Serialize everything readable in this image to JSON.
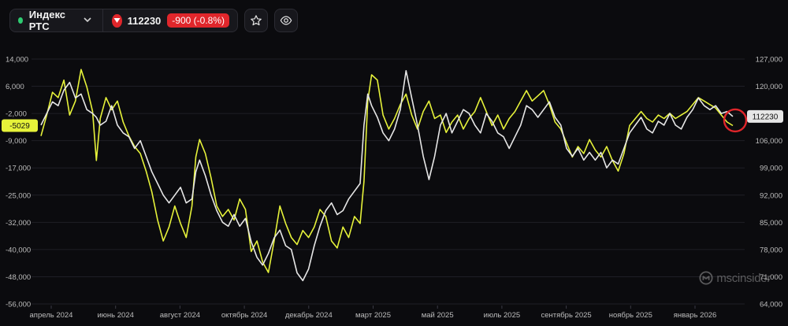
{
  "header": {
    "ticker_name": "Индекс РТС",
    "ticker_dot_color": "#2ecc71",
    "price": "112230",
    "change": "-900 (-0.8%)",
    "change_color": "#e0262b",
    "favorite_icon": "star-icon",
    "watch_icon": "eye-icon",
    "dropdown_icon": "chevron-down-icon",
    "trend_icon": "triangle-down-icon"
  },
  "brand": {
    "logo_icon": "mscinsider-logo-icon",
    "text": "mscinsider"
  },
  "chart_data": {
    "type": "line",
    "grid": true,
    "legend": "none",
    "x_ticks": [
      "апрель 2024",
      "июнь 2024",
      "август 2024",
      "октябрь 2024",
      "декабрь 2024",
      "март 2025",
      "май 2025",
      "июль 2025",
      "сентябрь 2025",
      "ноябрь 2025",
      "январь 2026"
    ],
    "y_left": {
      "ticks": [
        "14,000",
        "6,000",
        "-2,000",
        "-9,000",
        "-17,000",
        "-25,000",
        "-32,000",
        "-40,000",
        "-48,000",
        "-56,000"
      ],
      "range": [
        -56000,
        14000
      ]
    },
    "y_right": {
      "ticks": [
        "127,000",
        "120,000",
        "113,000",
        "106,000",
        "99,000",
        "92,000",
        "85,000",
        "78,000",
        "71,000",
        "64,000"
      ],
      "range": [
        64000,
        127000
      ]
    },
    "flags": {
      "left_value": "-5029",
      "left_color": "#e6f23a",
      "right_value": "112230",
      "right_color": "#e6e6e6"
    },
    "series": [
      {
        "color": "#e6f23a",
        "axis": "left",
        "points": [
          [
            0,
            -8000
          ],
          [
            3,
            -2000
          ],
          [
            6,
            4500
          ],
          [
            9,
            3000
          ],
          [
            12,
            8000
          ],
          [
            15,
            -2000
          ],
          [
            18,
            2000
          ],
          [
            21,
            11000
          ],
          [
            24,
            6000
          ],
          [
            27,
            -1000
          ],
          [
            29,
            -15000
          ],
          [
            31,
            -3000
          ],
          [
            34,
            3000
          ],
          [
            37,
            -500
          ],
          [
            40,
            2000
          ],
          [
            43,
            -4000
          ],
          [
            46,
            -8000
          ],
          [
            49,
            -11000
          ],
          [
            52,
            -13000
          ],
          [
            55,
            -18000
          ],
          [
            58,
            -24000
          ],
          [
            61,
            -32000
          ],
          [
            64,
            -38000
          ],
          [
            67,
            -34000
          ],
          [
            70,
            -28000
          ],
          [
            73,
            -33000
          ],
          [
            76,
            -37000
          ],
          [
            79,
            -28000
          ],
          [
            81,
            -14000
          ],
          [
            83,
            -9000
          ],
          [
            86,
            -13000
          ],
          [
            89,
            -20000
          ],
          [
            92,
            -28000
          ],
          [
            95,
            -31000
          ],
          [
            98,
            -29000
          ],
          [
            101,
            -32000
          ],
          [
            104,
            -26000
          ],
          [
            107,
            -29000
          ],
          [
            110,
            -41000
          ],
          [
            113,
            -38000
          ],
          [
            116,
            -44000
          ],
          [
            119,
            -47000
          ],
          [
            122,
            -38000
          ],
          [
            125,
            -28000
          ],
          [
            128,
            -33000
          ],
          [
            131,
            -37000
          ],
          [
            134,
            -39000
          ],
          [
            137,
            -35000
          ],
          [
            140,
            -37000
          ],
          [
            143,
            -34000
          ],
          [
            146,
            -29000
          ],
          [
            149,
            -31000
          ],
          [
            152,
            -38000
          ],
          [
            155,
            -40000
          ],
          [
            158,
            -34000
          ],
          [
            161,
            -37000
          ],
          [
            164,
            -31000
          ],
          [
            167,
            -33000
          ],
          [
            169,
            -21000
          ],
          [
            171,
            2000
          ],
          [
            173,
            9500
          ],
          [
            176,
            8000
          ],
          [
            179,
            -2000
          ],
          [
            182,
            -6000
          ],
          [
            185,
            -3000
          ],
          [
            188,
            1000
          ],
          [
            191,
            4000
          ],
          [
            194,
            -2000
          ],
          [
            197,
            -6000
          ],
          [
            200,
            -1000
          ],
          [
            203,
            2000
          ],
          [
            206,
            -3000
          ],
          [
            209,
            -2000
          ],
          [
            212,
            -7000
          ],
          [
            215,
            -4000
          ],
          [
            218,
            -2000
          ],
          [
            221,
            -6000
          ],
          [
            224,
            -3000
          ],
          [
            227,
            -1000
          ],
          [
            230,
            3000
          ],
          [
            233,
            -1000
          ],
          [
            236,
            -5000
          ],
          [
            239,
            -2000
          ],
          [
            242,
            -6000
          ],
          [
            245,
            -3000
          ],
          [
            248,
            -1000
          ],
          [
            251,
            2000
          ],
          [
            254,
            5000
          ],
          [
            257,
            2000
          ],
          [
            260,
            3500
          ],
          [
            263,
            5000
          ],
          [
            266,
            1000
          ],
          [
            269,
            -4000
          ],
          [
            272,
            -6000
          ],
          [
            275,
            -10000
          ],
          [
            278,
            -14000
          ],
          [
            281,
            -11000
          ],
          [
            284,
            -13000
          ],
          [
            287,
            -9000
          ],
          [
            290,
            -12000
          ],
          [
            293,
            -14000
          ],
          [
            296,
            -11000
          ],
          [
            299,
            -15000
          ],
          [
            302,
            -18000
          ],
          [
            305,
            -13000
          ],
          [
            308,
            -5000
          ],
          [
            311,
            -3000
          ],
          [
            314,
            -1000
          ],
          [
            317,
            -3000
          ],
          [
            320,
            -4000
          ],
          [
            323,
            -2000
          ],
          [
            326,
            -3000
          ],
          [
            329,
            -1500
          ],
          [
            332,
            -3000
          ],
          [
            335,
            -2000
          ],
          [
            338,
            -1000
          ],
          [
            341,
            1000
          ],
          [
            344,
            3000
          ],
          [
            347,
            2000
          ],
          [
            350,
            1000
          ],
          [
            353,
            0
          ],
          [
            356,
            -2000
          ],
          [
            359,
            -4000
          ],
          [
            362,
            -5029
          ]
        ]
      },
      {
        "color": "#e6e6e6",
        "axis": "right",
        "points": [
          [
            0,
            110000
          ],
          [
            3,
            113000
          ],
          [
            6,
            116000
          ],
          [
            9,
            115000
          ],
          [
            12,
            119000
          ],
          [
            15,
            121000
          ],
          [
            18,
            117000
          ],
          [
            21,
            118000
          ],
          [
            24,
            114000
          ],
          [
            27,
            113000
          ],
          [
            29,
            112000
          ],
          [
            31,
            110000
          ],
          [
            34,
            111000
          ],
          [
            37,
            115000
          ],
          [
            40,
            110000
          ],
          [
            43,
            108000
          ],
          [
            46,
            107000
          ],
          [
            49,
            104000
          ],
          [
            52,
            106000
          ],
          [
            55,
            102000
          ],
          [
            58,
            98000
          ],
          [
            61,
            95000
          ],
          [
            64,
            92000
          ],
          [
            67,
            90000
          ],
          [
            70,
            92000
          ],
          [
            73,
            94000
          ],
          [
            76,
            90000
          ],
          [
            79,
            91000
          ],
          [
            81,
            98000
          ],
          [
            83,
            101000
          ],
          [
            86,
            97000
          ],
          [
            89,
            92000
          ],
          [
            92,
            88000
          ],
          [
            95,
            85000
          ],
          [
            98,
            84000
          ],
          [
            101,
            87000
          ],
          [
            104,
            84000
          ],
          [
            107,
            86000
          ],
          [
            110,
            80000
          ],
          [
            113,
            76000
          ],
          [
            116,
            74000
          ],
          [
            119,
            77000
          ],
          [
            122,
            81000
          ],
          [
            125,
            83000
          ],
          [
            128,
            79000
          ],
          [
            131,
            78000
          ],
          [
            134,
            72000
          ],
          [
            137,
            70000
          ],
          [
            140,
            73000
          ],
          [
            143,
            79000
          ],
          [
            146,
            84000
          ],
          [
            149,
            88000
          ],
          [
            152,
            90000
          ],
          [
            155,
            87000
          ],
          [
            158,
            88000
          ],
          [
            161,
            91000
          ],
          [
            164,
            93000
          ],
          [
            167,
            95000
          ],
          [
            169,
            110000
          ],
          [
            171,
            118000
          ],
          [
            173,
            115000
          ],
          [
            176,
            112000
          ],
          [
            179,
            108000
          ],
          [
            182,
            106000
          ],
          [
            185,
            109000
          ],
          [
            188,
            114000
          ],
          [
            191,
            124000
          ],
          [
            194,
            117000
          ],
          [
            197,
            110000
          ],
          [
            200,
            102000
          ],
          [
            203,
            96000
          ],
          [
            206,
            102000
          ],
          [
            209,
            110000
          ],
          [
            212,
            113000
          ],
          [
            215,
            108000
          ],
          [
            218,
            111000
          ],
          [
            221,
            114000
          ],
          [
            224,
            113000
          ],
          [
            227,
            110000
          ],
          [
            230,
            108000
          ],
          [
            233,
            113000
          ],
          [
            236,
            111000
          ],
          [
            239,
            108000
          ],
          [
            242,
            107000
          ],
          [
            245,
            104000
          ],
          [
            248,
            107000
          ],
          [
            251,
            110000
          ],
          [
            254,
            115000
          ],
          [
            257,
            114000
          ],
          [
            260,
            112000
          ],
          [
            263,
            114000
          ],
          [
            266,
            116000
          ],
          [
            269,
            112000
          ],
          [
            272,
            110000
          ],
          [
            275,
            104000
          ],
          [
            278,
            102000
          ],
          [
            281,
            104000
          ],
          [
            284,
            101000
          ],
          [
            287,
            103000
          ],
          [
            290,
            101000
          ],
          [
            293,
            103000
          ],
          [
            296,
            99000
          ],
          [
            299,
            101000
          ],
          [
            302,
            100000
          ],
          [
            305,
            104000
          ],
          [
            308,
            108000
          ],
          [
            311,
            110000
          ],
          [
            314,
            112000
          ],
          [
            317,
            109000
          ],
          [
            320,
            108000
          ],
          [
            323,
            111000
          ],
          [
            326,
            110000
          ],
          [
            329,
            113000
          ],
          [
            332,
            110000
          ],
          [
            335,
            109000
          ],
          [
            338,
            112000
          ],
          [
            341,
            114000
          ],
          [
            344,
            117000
          ],
          [
            347,
            115000
          ],
          [
            350,
            114000
          ],
          [
            353,
            115000
          ],
          [
            356,
            113000
          ],
          [
            359,
            113500
          ],
          [
            362,
            112230
          ]
        ]
      }
    ]
  }
}
